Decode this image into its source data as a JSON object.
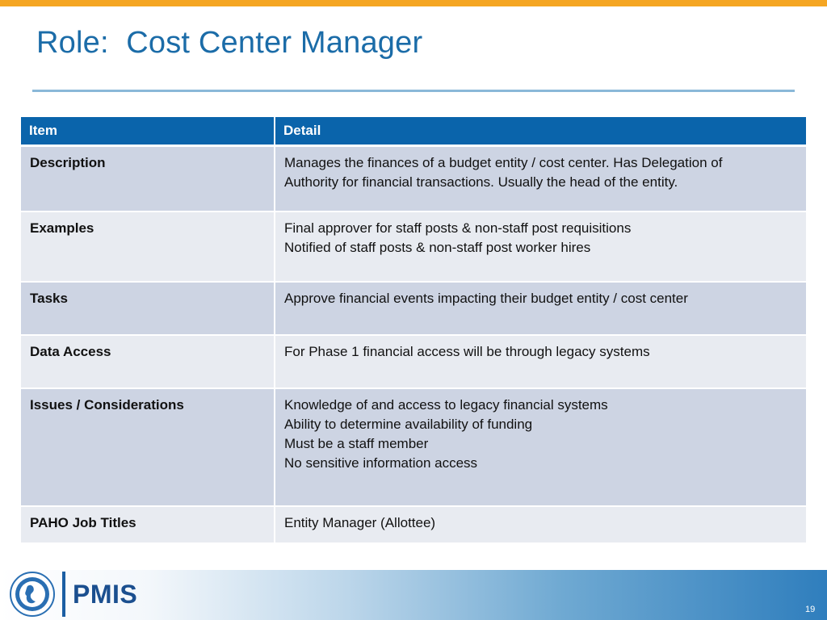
{
  "slide": {
    "title": "Role:  Cost Center Manager",
    "page_number": "19"
  },
  "table": {
    "headers": [
      "Item",
      "Detail"
    ],
    "rows": [
      {
        "item": "Description",
        "detail": [
          "Manages the finances of a budget entity / cost center. Has Delegation of",
          "Authority for financial transactions.  Usually the head of the entity."
        ]
      },
      {
        "item": "Examples",
        "detail": [
          "Final approver for staff posts & non-staff post requisitions",
          "Notified of staff posts & non-staff post worker hires"
        ]
      },
      {
        "item": "Tasks",
        "detail": [
          "Approve financial events impacting their budget entity / cost center"
        ]
      },
      {
        "item": "Data Access",
        "detail": [
          "For Phase 1 financial access will be through legacy systems"
        ]
      },
      {
        "item": "Issues / Considerations",
        "detail": [
          "Knowledge of and access to legacy financial systems",
          "Ability to determine availability of funding",
          "Must be a staff member",
          "No sensitive information access"
        ]
      },
      {
        "item": "PAHO Job Titles",
        "detail": [
          "Entity Manager (Allottee)"
        ]
      }
    ]
  },
  "footer": {
    "logo_text": "PMIS"
  },
  "colors": {
    "accent_bar": "#f5a623",
    "title": "#1b6ca8",
    "header_bg": "#0a64ab",
    "row_dark": "#cdd4e3",
    "row_light": "#e8ebf1"
  }
}
